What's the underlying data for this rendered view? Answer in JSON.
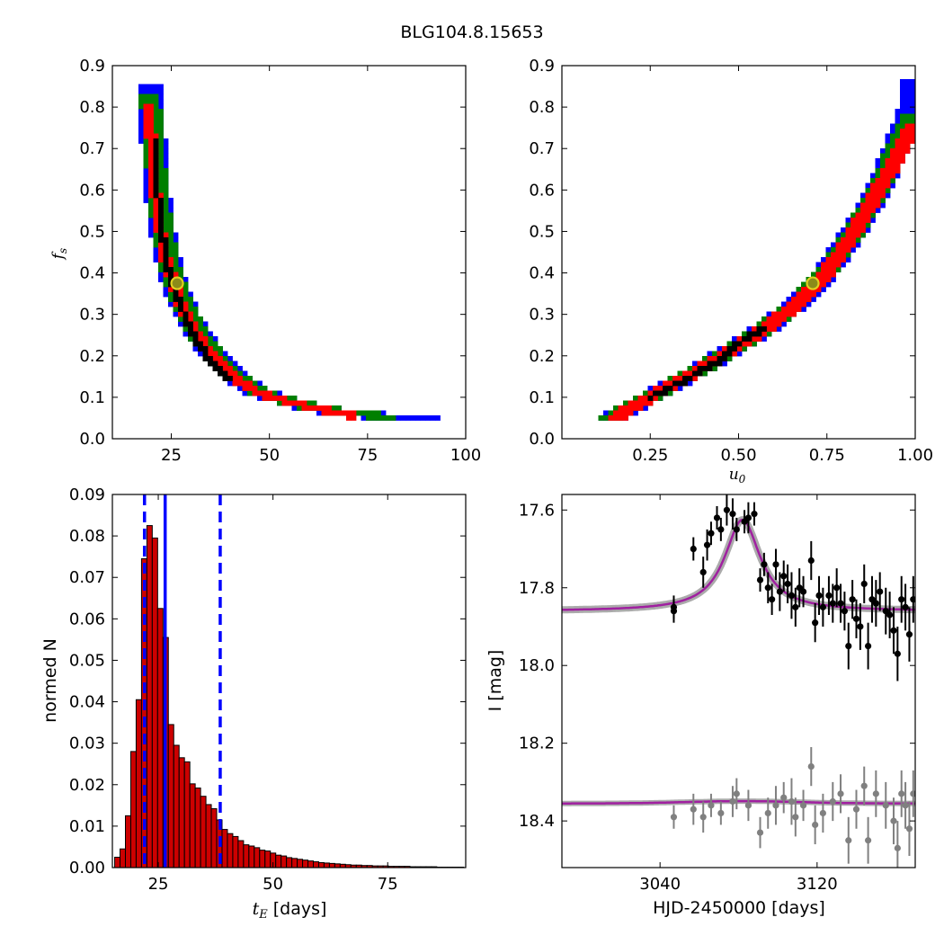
{
  "figure_title": "BLG104.8.15653",
  "colors": {
    "blue": "#0000ff",
    "green": "#007f00",
    "red": "#ff0000",
    "black": "#000000",
    "best_fill": "#8b8b1a",
    "best_edge": "#e0d020",
    "hist_fill": "#cc0000",
    "model": "#a020a0",
    "band": "#888888",
    "grey_pts": "#808080"
  },
  "chart_data": [
    {
      "type": "heatmap",
      "ylabel": "f_s",
      "xlim": [
        10,
        100
      ],
      "ylim": [
        0,
        0.9
      ],
      "xticks": [
        25,
        50,
        75,
        100
      ],
      "xtick_labels": [
        "25",
        "50",
        "75",
        "100"
      ],
      "yticks": [
        0.0,
        0.1,
        0.2,
        0.3,
        0.4,
        0.5,
        0.6,
        0.7,
        0.8,
        0.9
      ],
      "ytick_labels": [
        "0.0",
        "0.1",
        "0.2",
        "0.3",
        "0.4",
        "0.5",
        "0.6",
        "0.7",
        "0.8",
        "0.9"
      ],
      "best_fit": {
        "x": 26.5,
        "y": 0.375
      },
      "confidence_bands": [
        {
          "level": "blue",
          "spine": [
            [
              19.5,
              0.85
            ],
            [
              20.5,
              0.72
            ],
            [
              21.5,
              0.6
            ],
            [
              22.8,
              0.5
            ],
            [
              24.5,
              0.42
            ],
            [
              26.5,
              0.36
            ],
            [
              29,
              0.3
            ],
            [
              32,
              0.25
            ],
            [
              36,
              0.2
            ],
            [
              41,
              0.15
            ],
            [
              48,
              0.11
            ],
            [
              57,
              0.085
            ],
            [
              67,
              0.065
            ],
            [
              78,
              0.055
            ],
            [
              90,
              0.05
            ]
          ],
          "half_width": 2.6
        },
        {
          "level": "green",
          "spine": [
            [
              19.5,
              0.83
            ],
            [
              20.5,
              0.72
            ],
            [
              21.5,
              0.6
            ],
            [
              22.8,
              0.5
            ],
            [
              24.5,
              0.42
            ],
            [
              26.5,
              0.36
            ],
            [
              29,
              0.3
            ],
            [
              32,
              0.25
            ],
            [
              36,
              0.2
            ],
            [
              41,
              0.15
            ],
            [
              48,
              0.11
            ],
            [
              57,
              0.085
            ],
            [
              67,
              0.065
            ],
            [
              78,
              0.055
            ],
            [
              80,
              0.05
            ]
          ],
          "half_width": 1.9
        },
        {
          "level": "red",
          "spine": [
            [
              19.5,
              0.8
            ],
            [
              20.5,
              0.72
            ],
            [
              21.5,
              0.6
            ],
            [
              22.8,
              0.5
            ],
            [
              24.5,
              0.42
            ],
            [
              26.5,
              0.36
            ],
            [
              29,
              0.3
            ],
            [
              32,
              0.25
            ],
            [
              36,
              0.2
            ],
            [
              41,
              0.15
            ],
            [
              48,
              0.11
            ],
            [
              57,
              0.085
            ],
            [
              67,
              0.065
            ],
            [
              72,
              0.055
            ]
          ],
          "half_width": 1.2
        },
        {
          "level": "black",
          "spine": [
            [
              21,
              0.72
            ],
            [
              21.8,
              0.62
            ],
            [
              22.8,
              0.52
            ],
            [
              24,
              0.44
            ],
            [
              25.5,
              0.38
            ],
            [
              27.5,
              0.33
            ],
            [
              30,
              0.27
            ],
            [
              33,
              0.22
            ],
            [
              36,
              0.18
            ],
            [
              40,
              0.14
            ]
          ],
          "half_width": 0.5
        }
      ]
    },
    {
      "type": "heatmap",
      "xlabel": "u_0",
      "xlim": [
        0.0,
        1.0
      ],
      "ylim": [
        0,
        0.9
      ],
      "xticks": [
        0.25,
        0.5,
        0.75,
        1.0
      ],
      "xtick_labels": [
        "0.25",
        "0.50",
        "0.75",
        "1.00"
      ],
      "yticks": [
        0.0,
        0.1,
        0.2,
        0.3,
        0.4,
        0.5,
        0.6,
        0.7,
        0.8,
        0.9
      ],
      "ytick_labels": [
        "0.0",
        "0.1",
        "0.2",
        "0.3",
        "0.4",
        "0.5",
        "0.6",
        "0.7",
        "0.8",
        "0.9"
      ],
      "best_fit": {
        "x": 0.71,
        "y": 0.375
      },
      "confidence_bands": [
        {
          "level": "blue",
          "spine": [
            [
              0.14,
              0.05
            ],
            [
              0.25,
              0.1
            ],
            [
              0.4,
              0.17
            ],
            [
              0.55,
              0.25
            ],
            [
              0.66,
              0.32
            ],
            [
              0.75,
              0.4
            ],
            [
              0.83,
              0.5
            ],
            [
              0.9,
              0.6
            ],
            [
              0.95,
              0.7
            ],
            [
              0.99,
              0.8
            ],
            [
              1.0,
              0.86
            ]
          ],
          "half_width": 0.032
        },
        {
          "level": "green",
          "spine": [
            [
              0.14,
              0.05
            ],
            [
              0.25,
              0.1
            ],
            [
              0.4,
              0.17
            ],
            [
              0.55,
              0.25
            ],
            [
              0.66,
              0.32
            ],
            [
              0.75,
              0.4
            ],
            [
              0.83,
              0.5
            ],
            [
              0.9,
              0.6
            ],
            [
              0.95,
              0.7
            ],
            [
              0.99,
              0.78
            ]
          ],
          "half_width": 0.024
        },
        {
          "level": "red",
          "spine": [
            [
              0.15,
              0.05
            ],
            [
              0.25,
              0.1
            ],
            [
              0.4,
              0.17
            ],
            [
              0.55,
              0.25
            ],
            [
              0.66,
              0.32
            ],
            [
              0.75,
              0.4
            ],
            [
              0.83,
              0.5
            ],
            [
              0.9,
              0.6
            ],
            [
              0.95,
              0.68
            ],
            [
              1.0,
              0.76
            ]
          ],
          "half_width": 0.017
        },
        {
          "level": "black",
          "spine": [
            [
              0.25,
              0.1
            ],
            [
              0.35,
              0.14
            ],
            [
              0.45,
              0.19
            ],
            [
              0.52,
              0.24
            ],
            [
              0.58,
              0.27
            ]
          ],
          "half_width": 0.005
        }
      ]
    },
    {
      "type": "bar",
      "xlabel": "t_E [days]",
      "ylabel": "normed N",
      "xlim": [
        15,
        92
      ],
      "ylim": [
        0,
        0.09
      ],
      "xticks": [
        25,
        50,
        75
      ],
      "xtick_labels": [
        "25",
        "50",
        "75"
      ],
      "yticks": [
        0.0,
        0.01,
        0.02,
        0.03,
        0.04,
        0.05,
        0.06,
        0.07,
        0.08,
        0.09
      ],
      "ytick_labels": [
        "0.00",
        "0.01",
        "0.02",
        "0.03",
        "0.04",
        "0.05",
        "0.06",
        "0.07",
        "0.08",
        "0.09"
      ],
      "bin_start": 15.5,
      "bin_width": 1.17,
      "values": [
        0.0025,
        0.0045,
        0.0125,
        0.028,
        0.0405,
        0.0745,
        0.0825,
        0.0795,
        0.0625,
        0.0555,
        0.0345,
        0.0295,
        0.0265,
        0.0255,
        0.0202,
        0.0192,
        0.0172,
        0.0152,
        0.0142,
        0.0115,
        0.0092,
        0.0082,
        0.0075,
        0.0065,
        0.0055,
        0.0052,
        0.0048,
        0.0042,
        0.004,
        0.0035,
        0.003,
        0.0028,
        0.0024,
        0.0022,
        0.002,
        0.0018,
        0.0016,
        0.0014,
        0.0012,
        0.0011,
        0.001,
        0.0009,
        0.0008,
        0.0007,
        0.0006,
        0.0006,
        0.0005,
        0.0005,
        0.0004,
        0.0004,
        0.0004,
        0.0003,
        0.0003,
        0.0003,
        0.0003,
        0.0002,
        0.0002,
        0.0002,
        0.0002,
        0.0002,
        0.0001,
        0.0001,
        0.0001,
        0.0001,
        0.0001
      ],
      "vlines": [
        {
          "x": 26.5,
          "style": "solid"
        },
        {
          "x": 22.0,
          "style": "dashed"
        },
        {
          "x": 38.5,
          "style": "dashed"
        }
      ]
    },
    {
      "type": "scatter",
      "xlabel": "HJD-2450000 [days]",
      "ylabel": "I [mag]",
      "xlim": [
        2990,
        3170
      ],
      "ylim": [
        18.52,
        17.56
      ],
      "xticks": [
        3040,
        3120
      ],
      "xtick_labels": [
        "3040",
        "3120"
      ],
      "yticks": [
        17.6,
        17.8,
        18.0,
        18.2,
        18.4
      ],
      "ytick_labels": [
        "17.6",
        "17.8",
        "18.0",
        "18.2",
        "18.4"
      ],
      "model": {
        "baseline": 17.86,
        "peak": 17.625,
        "t0": 3082,
        "tau": 11
      },
      "residual_baseline": 18.355,
      "series": [
        {
          "points": [
            [
              3047,
              17.85,
              0.03
            ],
            [
              3047,
              17.86,
              0.03
            ],
            [
              3057,
              17.7,
              0.03
            ],
            [
              3062,
              17.76,
              0.04
            ],
            [
              3064,
              17.69,
              0.04
            ],
            [
              3066,
              17.66,
              0.03
            ],
            [
              3069,
              17.62,
              0.03
            ],
            [
              3071,
              17.65,
              0.03
            ],
            [
              3074,
              17.6,
              0.04
            ],
            [
              3077,
              17.61,
              0.04
            ],
            [
              3079,
              17.65,
              0.03
            ],
            [
              3083,
              17.63,
              0.03
            ],
            [
              3085,
              17.62,
              0.04
            ],
            [
              3088,
              17.61,
              0.03
            ],
            [
              3091,
              17.78,
              0.03
            ],
            [
              3093,
              17.74,
              0.03
            ],
            [
              3095,
              17.8,
              0.04
            ],
            [
              3097,
              17.83,
              0.04
            ],
            [
              3099,
              17.74,
              0.04
            ],
            [
              3101,
              17.81,
              0.05
            ],
            [
              3103,
              17.77,
              0.04
            ],
            [
              3105,
              17.79,
              0.05
            ],
            [
              3107,
              17.82,
              0.06
            ],
            [
              3109,
              17.85,
              0.05
            ],
            [
              3111,
              17.8,
              0.05
            ],
            [
              3113,
              17.81,
              0.04
            ],
            [
              3117,
              17.73,
              0.05
            ],
            [
              3119,
              17.89,
              0.05
            ],
            [
              3121,
              17.82,
              0.05
            ],
            [
              3123,
              17.85,
              0.05
            ],
            [
              3126,
              17.82,
              0.05
            ],
            [
              3128,
              17.84,
              0.05
            ],
            [
              3130,
              17.8,
              0.05
            ],
            [
              3132,
              17.84,
              0.05
            ],
            [
              3134,
              17.86,
              0.05
            ],
            [
              3136,
              17.95,
              0.06
            ],
            [
              3138,
              17.83,
              0.05
            ],
            [
              3140,
              17.88,
              0.05
            ],
            [
              3142,
              17.9,
              0.06
            ],
            [
              3144,
              17.79,
              0.05
            ],
            [
              3146,
              17.95,
              0.06
            ],
            [
              3148,
              17.83,
              0.06
            ],
            [
              3150,
              17.84,
              0.06
            ],
            [
              3152,
              17.81,
              0.05
            ],
            [
              3155,
              17.86,
              0.06
            ],
            [
              3157,
              17.87,
              0.06
            ],
            [
              3159,
              17.91,
              0.06
            ],
            [
              3161,
              17.97,
              0.07
            ],
            [
              3163,
              17.83,
              0.06
            ],
            [
              3165,
              17.85,
              0.06
            ],
            [
              3167,
              17.92,
              0.07
            ],
            [
              3169,
              17.83,
              0.06
            ]
          ]
        },
        {
          "points": [
            [
              3047,
              18.39,
              0.03
            ],
            [
              3057,
              18.37,
              0.04
            ],
            [
              3062,
              18.39,
              0.04
            ],
            [
              3066,
              18.36,
              0.03
            ],
            [
              3071,
              18.38,
              0.03
            ],
            [
              3077,
              18.35,
              0.04
            ],
            [
              3079,
              18.33,
              0.04
            ],
            [
              3085,
              18.36,
              0.04
            ],
            [
              3091,
              18.43,
              0.04
            ],
            [
              3095,
              18.38,
              0.04
            ],
            [
              3099,
              18.36,
              0.05
            ],
            [
              3103,
              18.34,
              0.04
            ],
            [
              3107,
              18.35,
              0.06
            ],
            [
              3109,
              18.39,
              0.05
            ],
            [
              3113,
              18.36,
              0.04
            ],
            [
              3117,
              18.26,
              0.05
            ],
            [
              3119,
              18.41,
              0.05
            ],
            [
              3123,
              18.38,
              0.05
            ],
            [
              3128,
              18.35,
              0.05
            ],
            [
              3132,
              18.33,
              0.05
            ],
            [
              3136,
              18.45,
              0.06
            ],
            [
              3140,
              18.37,
              0.05
            ],
            [
              3144,
              18.31,
              0.05
            ],
            [
              3146,
              18.45,
              0.06
            ],
            [
              3150,
              18.33,
              0.06
            ],
            [
              3155,
              18.36,
              0.06
            ],
            [
              3159,
              18.4,
              0.06
            ],
            [
              3161,
              18.47,
              0.07
            ],
            [
              3163,
              18.33,
              0.06
            ],
            [
              3165,
              18.36,
              0.06
            ],
            [
              3167,
              18.42,
              0.07
            ],
            [
              3169,
              18.33,
              0.06
            ]
          ]
        }
      ]
    }
  ]
}
